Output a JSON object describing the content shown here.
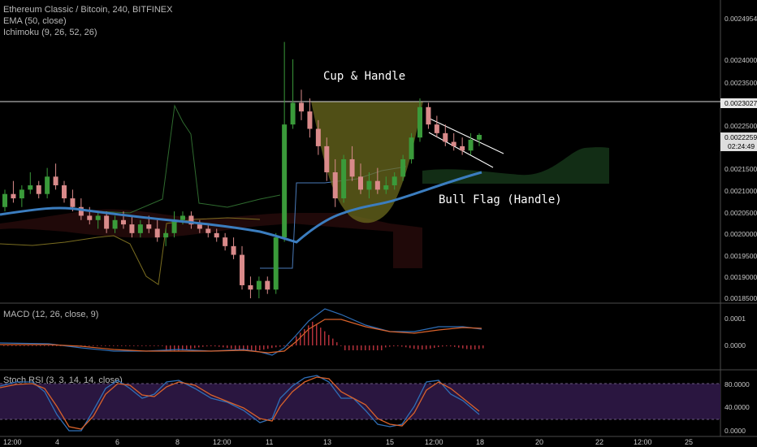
{
  "header": {
    "symbol_line": "Ethereum Classic / Bitcoin, 240, BITFINEX",
    "ema_line": "EMA (50, close)",
    "ichimoku_line": "Ichimoku (9, 26, 52, 26)"
  },
  "panels": {
    "macd_label": "MACD (12, 26, close, 9)",
    "stoch_label": "Stoch RSI (3, 3, 14, 14, close)"
  },
  "annotations": {
    "cup_handle": "Cup & Handle",
    "bull_flag": "Bull Flag (Handle)"
  },
  "price_axis": {
    "ticks": [
      "0.0024954",
      "0.0024000",
      "0.0023500",
      "0.0023027",
      "0.0022500",
      "0.0022259",
      "02:24:49",
      "0.0021500",
      "0.0021000",
      "0.0020500",
      "0.0020000",
      "0.0019500",
      "0.0019000",
      "0.0018500"
    ],
    "highlight_resistance": "0.0023027",
    "highlight_last": "0.0022259",
    "countdown": "02:24:49"
  },
  "macd_axis": {
    "ticks": [
      "0.0001",
      "0.0000"
    ]
  },
  "stoch_axis": {
    "ticks": [
      "80.0000",
      "40.0000",
      "0.0000"
    ]
  },
  "time_axis": {
    "ticks": [
      "12:00",
      "4",
      "6",
      "8",
      "12:00",
      "11",
      "13",
      "15",
      "12:00",
      "18",
      "20",
      "22",
      "12:00",
      "25"
    ]
  },
  "colors": {
    "bull": "#3a9a3a",
    "bear": "#d98a8a",
    "ema": "#3b7dbf",
    "cup_fill": "#6b6a1e",
    "resistance": "#d8d8d8",
    "macd_line": "#2f6fb8",
    "signal_line": "#d9622b",
    "hist": "#b0303a",
    "stoch_bg": "#2a1640",
    "stoch_k": "#2f6fb8",
    "stoch_d": "#d9622b"
  },
  "chart_data": {
    "type": "candlestick",
    "title": "Ethereum Classic / Bitcoin, 240, BITFINEX",
    "ylim": [
      0.00184,
      0.00251
    ],
    "resistance": 0.0023027,
    "last_price": 0.0022259,
    "candles": [
      [
        0.00206,
        0.0021,
        0.00205,
        0.00209
      ],
      [
        0.00209,
        0.00212,
        0.00207,
        0.00208
      ],
      [
        0.00208,
        0.00211,
        0.00206,
        0.0021
      ],
      [
        0.0021,
        0.00214,
        0.00209,
        0.00211
      ],
      [
        0.00211,
        0.00212,
        0.00208,
        0.00209
      ],
      [
        0.00209,
        0.00215,
        0.00208,
        0.00213
      ],
      [
        0.00213,
        0.00216,
        0.0021,
        0.00211
      ],
      [
        0.00211,
        0.00212,
        0.00207,
        0.00208
      ],
      [
        0.00208,
        0.0021,
        0.00205,
        0.00206
      ],
      [
        0.00206,
        0.00208,
        0.00203,
        0.00204
      ],
      [
        0.00204,
        0.00206,
        0.00202,
        0.00203
      ],
      [
        0.00203,
        0.00205,
        0.00201,
        0.00204
      ],
      [
        0.00204,
        0.00205,
        0.002,
        0.00201
      ],
      [
        0.00201,
        0.00204,
        0.002,
        0.00203
      ],
      [
        0.00203,
        0.00205,
        0.00201,
        0.00202
      ],
      [
        0.00202,
        0.00204,
        0.00199,
        0.002
      ],
      [
        0.002,
        0.00203,
        0.00199,
        0.00202
      ],
      [
        0.00202,
        0.00204,
        0.002,
        0.00201
      ],
      [
        0.00201,
        0.00203,
        0.00198,
        0.00199
      ],
      [
        0.00199,
        0.00201,
        0.00197,
        0.002
      ],
      [
        0.002,
        0.00205,
        0.00199,
        0.00203
      ],
      [
        0.00203,
        0.00205,
        0.00202,
        0.00204
      ],
      [
        0.00204,
        0.00205,
        0.00201,
        0.00202
      ],
      [
        0.00202,
        0.00203,
        0.002,
        0.00201
      ],
      [
        0.00201,
        0.00202,
        0.00199,
        0.002
      ],
      [
        0.002,
        0.00201,
        0.00198,
        0.00199
      ],
      [
        0.00199,
        0.002,
        0.00196,
        0.00197
      ],
      [
        0.00197,
        0.00199,
        0.00194,
        0.00195
      ],
      [
        0.00195,
        0.00197,
        0.00187,
        0.00188
      ],
      [
        0.00188,
        0.0019,
        0.00185,
        0.00187
      ],
      [
        0.00187,
        0.0019,
        0.00185,
        0.00189
      ],
      [
        0.00189,
        0.0019,
        0.00186,
        0.00187
      ],
      [
        0.00187,
        0.002,
        0.00186,
        0.00199
      ],
      [
        0.00199,
        0.00244,
        0.00198,
        0.00225
      ],
      [
        0.00225,
        0.0024,
        0.00224,
        0.0023
      ],
      [
        0.0023,
        0.00233,
        0.00226,
        0.00228
      ],
      [
        0.00228,
        0.00231,
        0.00222,
        0.00224
      ],
      [
        0.00224,
        0.00226,
        0.00218,
        0.0022
      ],
      [
        0.0022,
        0.00222,
        0.00212,
        0.00214
      ],
      [
        0.00214,
        0.00217,
        0.00206,
        0.00208
      ],
      [
        0.00208,
        0.00218,
        0.00207,
        0.00217
      ],
      [
        0.00217,
        0.0022,
        0.00212,
        0.00213
      ],
      [
        0.00213,
        0.00216,
        0.00209,
        0.0021
      ],
      [
        0.0021,
        0.00214,
        0.00208,
        0.00212
      ],
      [
        0.00212,
        0.00215,
        0.00209,
        0.0021
      ],
      [
        0.0021,
        0.00213,
        0.00209,
        0.00211
      ],
      [
        0.00211,
        0.00214,
        0.0021,
        0.00213
      ],
      [
        0.00213,
        0.00218,
        0.00212,
        0.00217
      ],
      [
        0.00217,
        0.00223,
        0.00216,
        0.00222
      ],
      [
        0.00222,
        0.00231,
        0.00221,
        0.00229
      ],
      [
        0.00229,
        0.0023,
        0.00224,
        0.00225
      ],
      [
        0.00225,
        0.00227,
        0.00222,
        0.00223
      ],
      [
        0.00223,
        0.00225,
        0.0022,
        0.00221
      ],
      [
        0.00221,
        0.00223,
        0.00219,
        0.0022
      ],
      [
        0.0022,
        0.00222,
        0.00218,
        0.00219
      ],
      [
        0.00219,
        0.00223,
        0.00218,
        0.002215
      ],
      [
        0.002215,
        0.00223,
        0.0022,
        0.002226
      ]
    ]
  }
}
